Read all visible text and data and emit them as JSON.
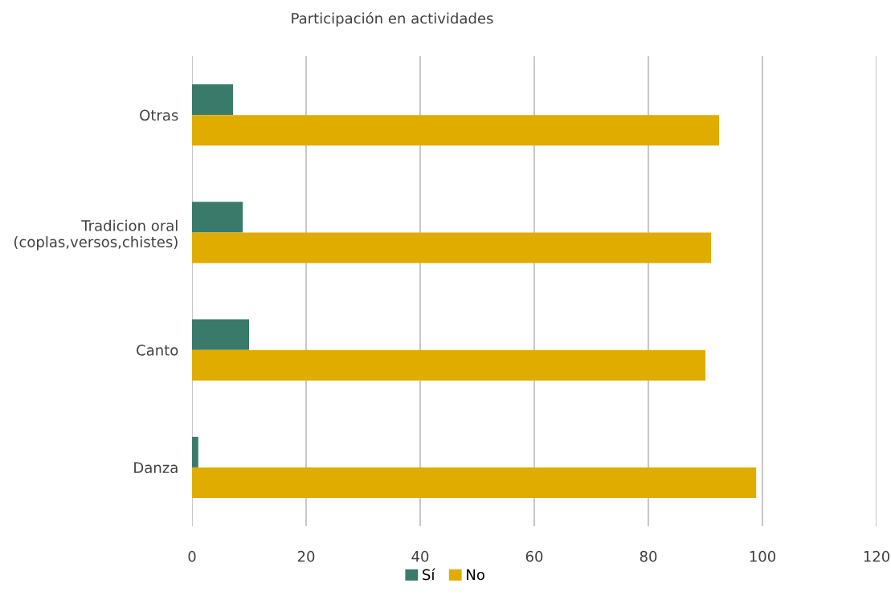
{
  "chart_data": {
    "type": "bar",
    "orientation": "horizontal",
    "title": "Participación en actividades",
    "categories": [
      "Otras",
      "Tradicion oral\n(coplas,versos,chistes)",
      "Canto",
      "Danza"
    ],
    "series": [
      {
        "name": "Sí",
        "color": "#3a7a6b",
        "values": [
          7.2,
          8.9,
          10.0,
          1.1
        ]
      },
      {
        "name": "No",
        "color": "#e0ac00",
        "values": [
          92.4,
          91.0,
          90.0,
          98.9
        ]
      }
    ],
    "xlim": [
      0,
      120
    ],
    "xticks": [
      0,
      20,
      40,
      60,
      80,
      100,
      120
    ],
    "grid": "x",
    "legend": "bottom"
  }
}
